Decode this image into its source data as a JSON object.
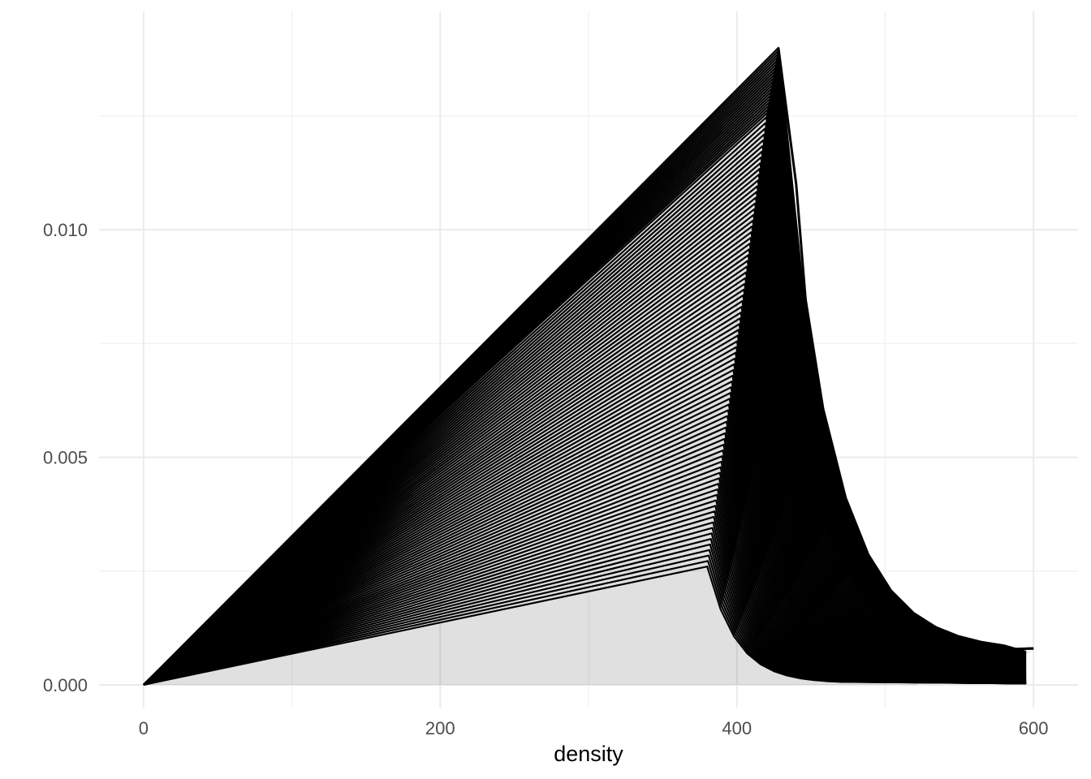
{
  "chart_data": {
    "type": "line",
    "title": "",
    "xlabel": "density",
    "ylabel": "",
    "xlim": [
      -30,
      630
    ],
    "ylim": [
      -0.0005,
      0.0148
    ],
    "x_ticks": [
      0,
      200,
      400,
      600
    ],
    "x_tick_labels": [
      "0",
      "200",
      "400",
      "600"
    ],
    "y_ticks": [
      0.0,
      0.005,
      0.01
    ],
    "y_tick_labels": [
      "0.000",
      "0.005",
      "0.010"
    ],
    "grid": true,
    "legend": "none",
    "line_color": "#000000",
    "series_count": 100,
    "series_pattern": "each line rises linearly from (0, 0) to a peak, then falls steeply; peaks range from about (380, 0.0026) to (428, 0.0140)",
    "peak_envelope": [
      {
        "x": 380,
        "y": 0.0026
      },
      {
        "x": 390,
        "y": 0.005
      },
      {
        "x": 400,
        "y": 0.0075
      },
      {
        "x": 410,
        "y": 0.01
      },
      {
        "x": 420,
        "y": 0.0125
      },
      {
        "x": 428,
        "y": 0.014
      }
    ],
    "decay_envelope": [
      {
        "x": 428,
        "y": 0.014
      },
      {
        "x": 440,
        "y": 0.011
      },
      {
        "x": 450,
        "y": 0.007
      },
      {
        "x": 460,
        "y": 0.0035
      },
      {
        "x": 475,
        "y": 0.0025
      },
      {
        "x": 490,
        "y": 0.002
      },
      {
        "x": 505,
        "y": 0.0017
      },
      {
        "x": 520,
        "y": 0.0007
      },
      {
        "x": 600,
        "y": 0.0008
      }
    ],
    "tail": [
      {
        "x": 520,
        "y": 0.0007
      },
      {
        "x": 560,
        "y": 0.00075
      },
      {
        "x": 600,
        "y": 0.0008
      }
    ]
  }
}
